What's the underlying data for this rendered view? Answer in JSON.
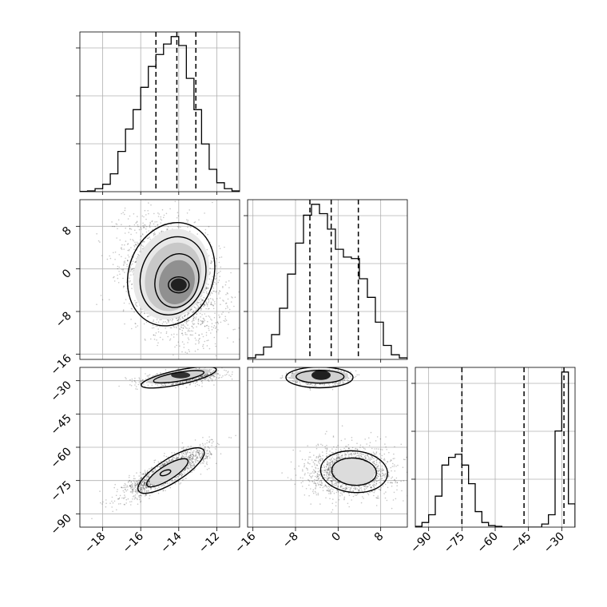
{
  "chart_data": {
    "type": "corner",
    "title": "",
    "grid": true,
    "parameters": [
      {
        "label": "",
        "range": [
          -19.2,
          -10.8
        ],
        "ticks": [
          -18,
          -16,
          -14,
          -12
        ],
        "tick_labels": [
          "−18",
          "−16",
          "−14",
          "−12"
        ],
        "quantiles": [
          -15.2,
          -14.1,
          -13.1
        ]
      },
      {
        "label": "",
        "range": [
          -17,
          13
        ],
        "ticks": [
          -16,
          -8,
          0,
          8
        ],
        "tick_labels": [
          "−16",
          "−8",
          "0",
          "8"
        ],
        "quantiles": [
          -5.3,
          -1.3,
          3.8
        ]
      },
      {
        "label": "",
        "range": [
          -96,
          -24
        ],
        "ticks": [
          -90,
          -75,
          -60,
          -45,
          -30
        ],
        "tick_labels": [
          "−90",
          "−75",
          "−60",
          "−45",
          "−30"
        ],
        "quantiles": [
          -75,
          -47,
          -29
        ]
      }
    ],
    "histograms": [
      {
        "param": 0,
        "bin_edges": [
          -19.2,
          -18.8,
          -18.4,
          -18.0,
          -17.6,
          -17.2,
          -16.8,
          -16.4,
          -16.0,
          -15.6,
          -15.2,
          -14.8,
          -14.4,
          -14.0,
          -13.6,
          -13.2,
          -12.8,
          -12.4,
          -12.0,
          -11.6,
          -11.2,
          -10.8
        ],
        "counts": [
          0.2,
          0.5,
          2,
          5,
          12,
          27,
          42,
          55,
          70,
          84,
          92,
          99,
          104,
          98,
          76,
          55,
          32,
          15,
          6,
          2,
          0.5
        ]
      },
      {
        "param": 1,
        "bin_edges": [
          -17.0,
          -15.5,
          -14.0,
          -12.5,
          -11.0,
          -9.5,
          -8.0,
          -6.5,
          -5.0,
          -3.5,
          -2.0,
          -0.5,
          1.0,
          2.5,
          4.0,
          5.5,
          7.0,
          8.5,
          10.0,
          11.5,
          13.0
        ],
        "counts": [
          1,
          3,
          8,
          16,
          33,
          55,
          75,
          93,
          100,
          94,
          84,
          71,
          66,
          65,
          52,
          40,
          24,
          9,
          3,
          1
        ]
      },
      {
        "param": 2,
        "bin_edges": [
          -96,
          -93,
          -90,
          -87,
          -84,
          -81,
          -78,
          -75,
          -72,
          -69,
          -66,
          -63,
          -60,
          -57,
          -54,
          -51,
          -48,
          -45,
          -42,
          -39,
          -36,
          -33,
          -30,
          -27,
          -24
        ],
        "counts": [
          0.5,
          3,
          8,
          20,
          40,
          45,
          47,
          40,
          28,
          10,
          3,
          1,
          0.5,
          0,
          0,
          0,
          0,
          0,
          0,
          2,
          8,
          62,
          100,
          15
        ]
      }
    ],
    "pairs": [
      {
        "x_param": 0,
        "y_param": 1,
        "mode": [
          -14.1,
          -2.5
        ]
      },
      {
        "x_param": 0,
        "y_param": 2,
        "modes": [
          [
            -14.0,
            -27.5
          ],
          [
            -14.5,
            -70.5
          ]
        ]
      },
      {
        "x_param": 1,
        "y_param": 2,
        "modes": [
          [
            -3.5,
            -27.5
          ],
          [
            3.0,
            -71.0
          ]
        ]
      }
    ]
  }
}
